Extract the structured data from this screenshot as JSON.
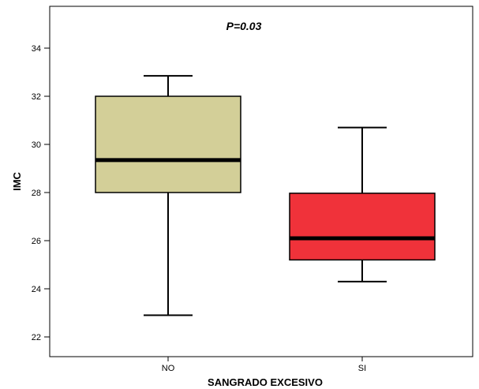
{
  "chart_data": {
    "type": "boxplot",
    "xlabel": "SANGRADO EXCESIVO",
    "ylabel": "IMC",
    "annotation": "P=0.03",
    "ylim": [
      21.2,
      35.5
    ],
    "yticks": [
      22,
      24,
      26,
      28,
      30,
      32,
      34
    ],
    "categories": [
      "NO",
      "SI"
    ],
    "boxes": [
      {
        "category": "NO",
        "min": 22.9,
        "q1": 28.0,
        "median": 29.35,
        "q3": 32.0,
        "max": 32.85,
        "color": "#d3cf98"
      },
      {
        "category": "SI",
        "min": 24.3,
        "q1": 25.2,
        "median": 26.1,
        "q3": 27.97,
        "max": 30.7,
        "color": "#f0323a"
      }
    ],
    "grid": false,
    "legend": "none"
  }
}
